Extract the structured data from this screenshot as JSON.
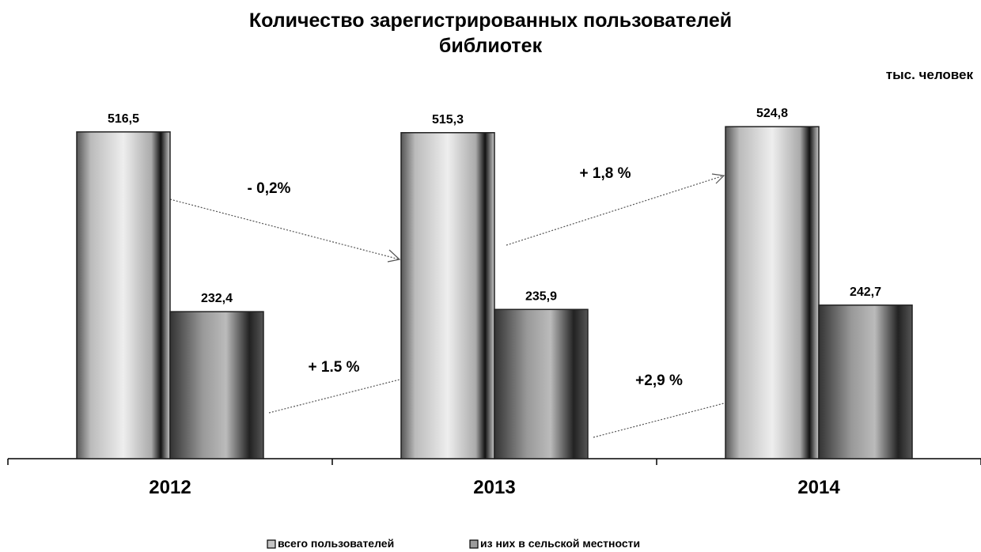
{
  "chart_data": {
    "type": "bar",
    "title": [
      "Количество зарегистрированных пользователей",
      "библиотек"
    ],
    "unit_label": "тыс. человек",
    "categories": [
      "2012",
      "2013",
      "2014"
    ],
    "series": [
      {
        "name": "всего пользователей",
        "color": "#c4c4c4",
        "values": [
          516.5,
          515.3,
          524.8
        ],
        "value_labels": [
          "516,5",
          "515,3",
          "524,8"
        ]
      },
      {
        "name": "из них в сельской местности",
        "color": "#9c9c9c",
        "values": [
          232.4,
          235.9,
          242.7
        ],
        "value_labels": [
          "232,4",
          "235,9",
          "242,7"
        ]
      }
    ],
    "annotations": [
      "- 0,2%",
      "+ 1,8 %",
      "+ 1.5 %",
      "+2,9 %"
    ],
    "ylim": [
      0,
      600
    ]
  }
}
